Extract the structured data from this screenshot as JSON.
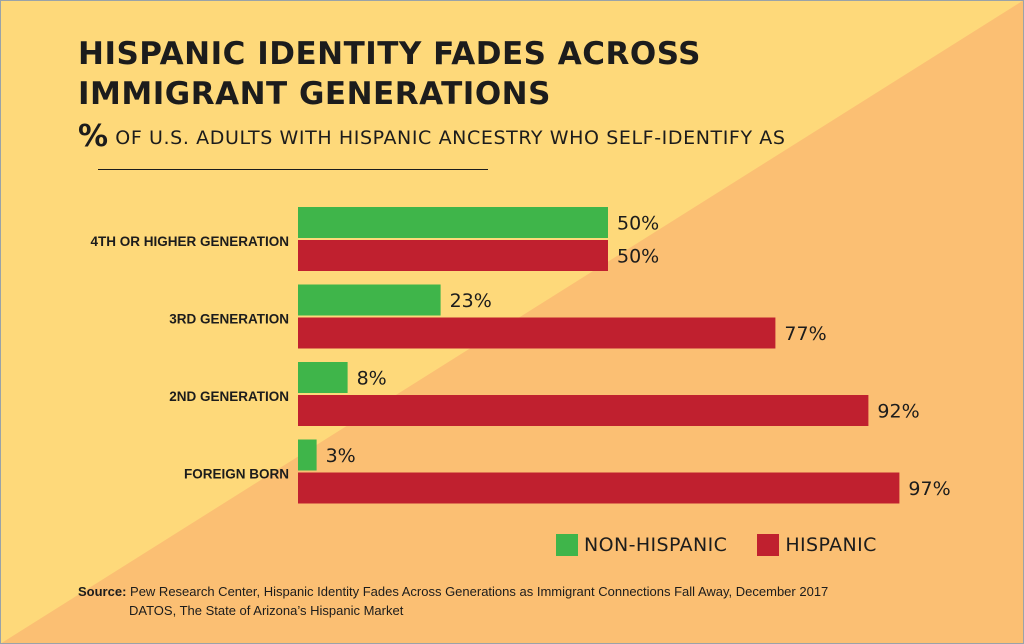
{
  "title_line1": "HISPANIC IDENTITY FADES ACROSS",
  "title_line2": "IMMIGRANT GENERATIONS",
  "subtitle_pct": "%",
  "subtitle_text": " OF U.S. ADULTS WITH HISPANIC ANCESTRY WHO SELF-IDENTIFY AS",
  "colors": {
    "bg_light": "#FED97A",
    "bg_dark": "#FBBF73",
    "non_hispanic": "#3FB54A",
    "hispanic": "#C0202F",
    "border": "#9AA3A8"
  },
  "legend": {
    "non_hispanic": "NON-HISPANIC",
    "hispanic": "HISPANIC"
  },
  "source_label": "Source:",
  "source_line1": "Pew Research Center, Hispanic Identity Fades Across Generations as Immigrant Connections Fall Away, December 2017",
  "source_line2": "DATOS, The State of Arizona’s Hispanic Market",
  "chart_data": {
    "type": "bar",
    "orientation": "horizontal",
    "categories": [
      "4TH OR HIGHER GENERATION",
      "3RD GENERATION",
      "2ND GENERATION",
      "FOREIGN BORN"
    ],
    "series": [
      {
        "name": "NON-HISPANIC",
        "values": [
          50,
          23,
          8,
          3
        ],
        "labels": [
          "50%",
          "23%",
          "8%",
          "3%"
        ]
      },
      {
        "name": "HISPANIC",
        "values": [
          50,
          77,
          92,
          97
        ],
        "labels": [
          "50%",
          "77%",
          "92%",
          "97%"
        ]
      }
    ],
    "xlim": [
      0,
      100
    ],
    "grid": false,
    "legend_position": "bottom-right"
  }
}
